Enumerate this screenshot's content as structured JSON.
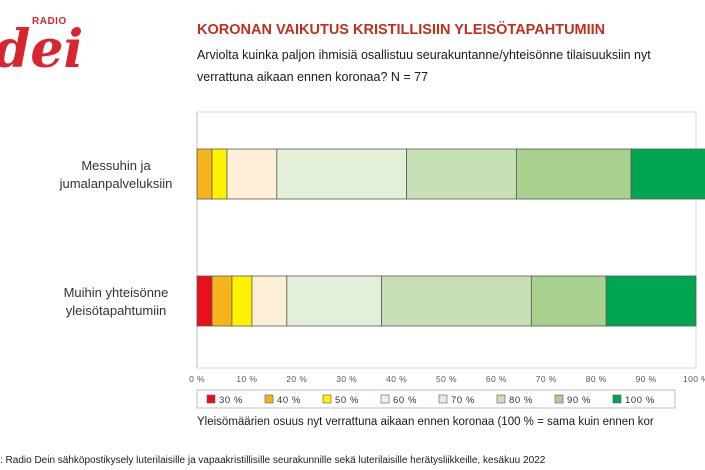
{
  "logo": {
    "small": "RADIO",
    "big": "dei"
  },
  "header": {
    "title": "KORONAN VAIKUTUS KRISTILLISIIN YLEISÖTAPAHTUMIIN",
    "subtitle": "Arviolta kuinka paljon ihmisiä osallistuu seurakuntanne/yhteisönne tilaisuuksiin nyt verrattuna aikaan ennen koronaa? N = 77"
  },
  "footer": {
    "xlabel": "Yleisömäärien osuus nyt verrattuna aikaan ennen koronaa (100 % = sama kuin ennen kor",
    "source": ": Radio Dein sähköpostikysely luterilaisille ja vapaakristillisille seurakunnille sekä luterilaisille herätysliikkeille, kesäkuu 2022"
  },
  "chart_data": {
    "type": "bar",
    "orientation": "horizontal",
    "stacked": true,
    "percent": true,
    "categories": [
      [
        "Messuhin ja",
        "jumalanpalveluksiin"
      ],
      [
        "Muihin yhteisönne",
        "yleisötapahtumiin"
      ]
    ],
    "series": [
      {
        "name": "30 %",
        "color": "#e8101b",
        "values": [
          0,
          3
        ]
      },
      {
        "name": "40 %",
        "color": "#f5b41e",
        "values": [
          3,
          4
        ]
      },
      {
        "name": "50 %",
        "color": "#fff200",
        "values": [
          3,
          4
        ]
      },
      {
        "name": "60 %",
        "color": "#fdeed6",
        "values": [
          10,
          7
        ]
      },
      {
        "name": "70 %",
        "color": "#e3efd9",
        "values": [
          26,
          19
        ]
      },
      {
        "name": "80 %",
        "color": "#c8e0b5",
        "values": [
          22,
          30
        ]
      },
      {
        "name": "90 %",
        "color": "#a9d18e",
        "values": [
          23,
          15
        ]
      },
      {
        "name": "100 %",
        "color": "#00a550",
        "values": [
          15,
          18
        ]
      }
    ],
    "xlim": [
      0,
      100
    ],
    "xticks": [
      "0 %",
      "10 %",
      "20 %",
      "30 %",
      "40 %",
      "50 %",
      "60 %",
      "70 %",
      "80 %",
      "90 %",
      "100 %"
    ],
    "legend_position": "bottom"
  }
}
